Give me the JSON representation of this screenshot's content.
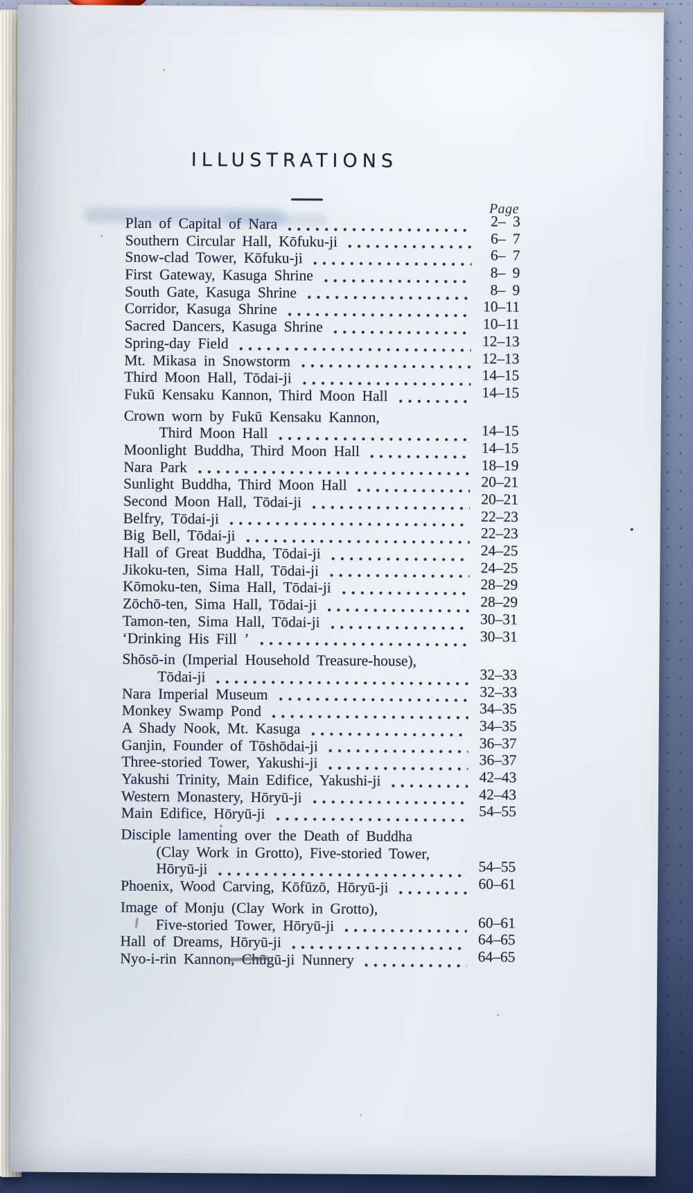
{
  "photo": {
    "background_top_color": "#aab3cb",
    "background_bottom_color": "#1e2c48",
    "paper_color": "#e9eef3",
    "ink_color": "#242b42",
    "page_edge_color": "#ece8da",
    "yarn_color": "#c22407"
  },
  "page": {
    "title": "ILLUSTRATIONS",
    "column_header": "Page",
    "entries": [
      {
        "lines": [
          "Plan of Capital of Nara"
        ],
        "pages": "2– 3"
      },
      {
        "lines": [
          "Southern Circular Hall, Kōfuku-ji"
        ],
        "pages": "6– 7"
      },
      {
        "lines": [
          "Snow-clad Tower, Kōfuku-ji"
        ],
        "pages": "6– 7"
      },
      {
        "lines": [
          "First Gateway, Kasuga Shrine"
        ],
        "pages": "8– 9"
      },
      {
        "lines": [
          "South Gate, Kasuga Shrine"
        ],
        "pages": "8– 9"
      },
      {
        "lines": [
          "Corridor, Kasuga Shrine"
        ],
        "pages": "10–11"
      },
      {
        "lines": [
          "Sacred Dancers, Kasuga Shrine"
        ],
        "pages": "10–11"
      },
      {
        "lines": [
          "Spring-day Field"
        ],
        "pages": "12–13"
      },
      {
        "lines": [
          "Mt. Mikasa in Snowstorm"
        ],
        "pages": "12–13"
      },
      {
        "lines": [
          "Third Moon Hall, Tōdai-ji"
        ],
        "pages": "14–15"
      },
      {
        "lines": [
          "Fukū Kensaku Kannon, Third Moon Hall"
        ],
        "pages": "14–15"
      },
      {
        "lines": [
          "Crown worn by Fukū Kensaku Kannon,",
          "Third Moon Hall"
        ],
        "pages": "14–15",
        "gap_before": true
      },
      {
        "lines": [
          "Moonlight Buddha, Third Moon Hall"
        ],
        "pages": "14–15"
      },
      {
        "lines": [
          "Nara Park"
        ],
        "pages": "18–19"
      },
      {
        "lines": [
          "Sunlight Buddha, Third Moon Hall"
        ],
        "pages": "20–21"
      },
      {
        "lines": [
          "Second Moon Hall, Tōdai-ji"
        ],
        "pages": "20–21"
      },
      {
        "lines": [
          "Belfry, Tōdai-ji"
        ],
        "pages": "22–23"
      },
      {
        "lines": [
          "Big Bell, Tōdai-ji"
        ],
        "pages": "22–23"
      },
      {
        "lines": [
          "Hall of Great Buddha, Tōdai-ji"
        ],
        "pages": "24–25"
      },
      {
        "lines": [
          "Jikoku-ten, Sima Hall, Tōdai-ji"
        ],
        "pages": "24–25"
      },
      {
        "lines": [
          "Kōmoku-ten, Sima Hall, Tōdai-ji"
        ],
        "pages": "28–29"
      },
      {
        "lines": [
          "Zōchō-ten, Sima Hall, Tōdai-ji"
        ],
        "pages": "28–29"
      },
      {
        "lines": [
          "Tamon-ten, Sima Hall, Tōdai-ji"
        ],
        "pages": "30–31"
      },
      {
        "lines": [
          "‘Drinking His Fill ’"
        ],
        "pages": "30–31"
      },
      {
        "lines": [
          "Shōsō-in (Imperial Household Treasure-house),",
          "Tōdai-ji"
        ],
        "pages": "32–33",
        "gap_before": true
      },
      {
        "lines": [
          "Nara Imperial Museum"
        ],
        "pages": "32–33"
      },
      {
        "lines": [
          "Monkey Swamp Pond"
        ],
        "pages": "34–35"
      },
      {
        "lines": [
          "A Shady Nook, Mt. Kasuga"
        ],
        "pages": "34–35"
      },
      {
        "lines": [
          "Ganjin, Founder of Tōshōdai-ji"
        ],
        "pages": "36–37"
      },
      {
        "lines": [
          "Three-storied Tower, Yakushi-ji"
        ],
        "pages": "36–37"
      },
      {
        "lines": [
          "Yakushi Trinity, Main Edifice, Yakushi-ji"
        ],
        "pages": "42–43"
      },
      {
        "lines": [
          "Western Monastery, Hōryū-ji"
        ],
        "pages": "42–43"
      },
      {
        "lines": [
          "Main Edifice, Hōryū-ji"
        ],
        "pages": "54–55"
      },
      {
        "lines": [
          "Disciple lamenting over the Death of Buddha",
          "(Clay Work in Grotto), Five-storied Tower,",
          "Hōryū-ji"
        ],
        "pages": "54–55",
        "gap_before": true
      },
      {
        "lines": [
          "Phoenix, Wood Carving, Kōfūzō, Hōryū-ji"
        ],
        "pages": "60–61"
      },
      {
        "lines": [
          "Image of Monju (Clay Work in Grotto),",
          "Five-storied Tower, Hōryū-ji"
        ],
        "pages": "60–61",
        "gap_before": true
      },
      {
        "lines": [
          "Hall of Dreams, Hōryū-ji"
        ],
        "pages": "64–65"
      },
      {
        "lines": [
          "Nyo-i-rin Kannon, Chūgū-ji Nunnery"
        ],
        "pages": "64–65"
      }
    ]
  }
}
